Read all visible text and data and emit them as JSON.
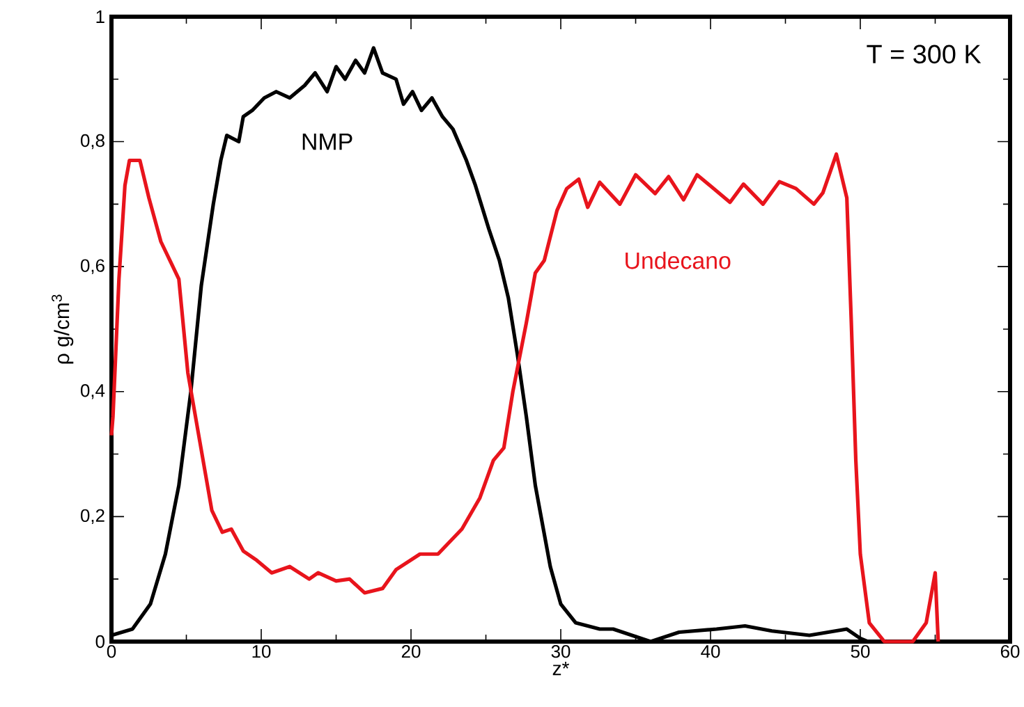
{
  "chart_data": {
    "type": "line",
    "xlabel": "z*",
    "ylabel": "ρ  g/cm$^{3}$",
    "annotations": [
      "T = 300 K"
    ],
    "xlim": [
      0,
      60
    ],
    "ylim": [
      0,
      1
    ],
    "xticks": [
      0,
      10,
      20,
      30,
      40,
      50,
      60
    ],
    "yticks": [
      0,
      {
        "value": 0.2,
        "label": "0,2"
      },
      {
        "value": 0.4,
        "label": "0,4"
      },
      {
        "value": 0.6,
        "label": "0,6"
      },
      {
        "value": 0.8,
        "label": "0,8"
      },
      1
    ],
    "series": [
      {
        "name": "NMP",
        "color": "#000000",
        "x": [
          0,
          1.4,
          2.6,
          3.6,
          4.5,
          5.3,
          6.0,
          6.8,
          7.3,
          7.7,
          8.5,
          8.8,
          9.4,
          10.2,
          11,
          11.9,
          12.9,
          13.6,
          14.4,
          15,
          15.6,
          16.3,
          16.9,
          17.5,
          18.1,
          19.0,
          19.5,
          20.1,
          20.7,
          21.4,
          22.1,
          22.8,
          23.7,
          24.3,
          25.2,
          25.9,
          26.5,
          27.1,
          27.7,
          28.3,
          29.3,
          30,
          31,
          32.6,
          33.5,
          36,
          37.9,
          40.4,
          42.3,
          44.1,
          46.6,
          49.1,
          50,
          50.5
        ],
        "values": [
          0.01,
          0.02,
          0.06,
          0.14,
          0.25,
          0.4,
          0.57,
          0.7,
          0.77,
          0.81,
          0.8,
          0.84,
          0.85,
          0.87,
          0.88,
          0.87,
          0.89,
          0.91,
          0.88,
          0.92,
          0.9,
          0.93,
          0.91,
          0.95,
          0.91,
          0.9,
          0.86,
          0.88,
          0.85,
          0.87,
          0.84,
          0.82,
          0.77,
          0.73,
          0.66,
          0.61,
          0.55,
          0.46,
          0.36,
          0.25,
          0.12,
          0.06,
          0.03,
          0.02,
          0.02,
          0.0,
          0.015,
          0.02,
          0.025,
          0.017,
          0.01,
          0.02,
          0.005,
          0
        ]
      },
      {
        "name": "Undecano",
        "color": "#e8141c",
        "x": [
          0,
          0.1,
          0.5,
          0.9,
          1.2,
          1.9,
          2.5,
          3.3,
          3.9,
          4.5,
          5.1,
          5.9,
          6.7,
          7.4,
          8.0,
          8.8,
          9.7,
          10.7,
          11.9,
          13.2,
          13.8,
          15.0,
          15.9,
          16.9,
          18.1,
          19.0,
          20.6,
          21.8,
          23.4,
          24.6,
          25.5,
          26.2,
          26.8,
          27.7,
          28.3,
          28.9,
          29.75,
          30.4,
          31.2,
          31.8,
          32.6,
          33.95,
          35,
          36.3,
          37.2,
          38.2,
          39.1,
          41.3,
          42.2,
          43.5,
          44.6,
          45.7,
          46.9,
          47.5,
          48.4,
          49.1,
          49.4,
          49.7,
          50,
          50.6,
          51.6,
          53.5,
          54.4,
          55,
          55.2
        ],
        "values": [
          0.33,
          0.36,
          0.58,
          0.73,
          0.77,
          0.77,
          0.71,
          0.64,
          0.61,
          0.58,
          0.43,
          0.32,
          0.21,
          0.175,
          0.18,
          0.145,
          0.13,
          0.11,
          0.12,
          0.1,
          0.11,
          0.097,
          0.1,
          0.078,
          0.085,
          0.115,
          0.14,
          0.14,
          0.18,
          0.23,
          0.29,
          0.31,
          0.4,
          0.51,
          0.59,
          0.61,
          0.69,
          0.725,
          0.74,
          0.695,
          0.735,
          0.7,
          0.747,
          0.717,
          0.744,
          0.707,
          0.747,
          0.703,
          0.732,
          0.7,
          0.736,
          0.725,
          0.7,
          0.718,
          0.78,
          0.71,
          0.51,
          0.29,
          0.14,
          0.03,
          0,
          0,
          0.03,
          0.11,
          0
        ]
      }
    ]
  }
}
